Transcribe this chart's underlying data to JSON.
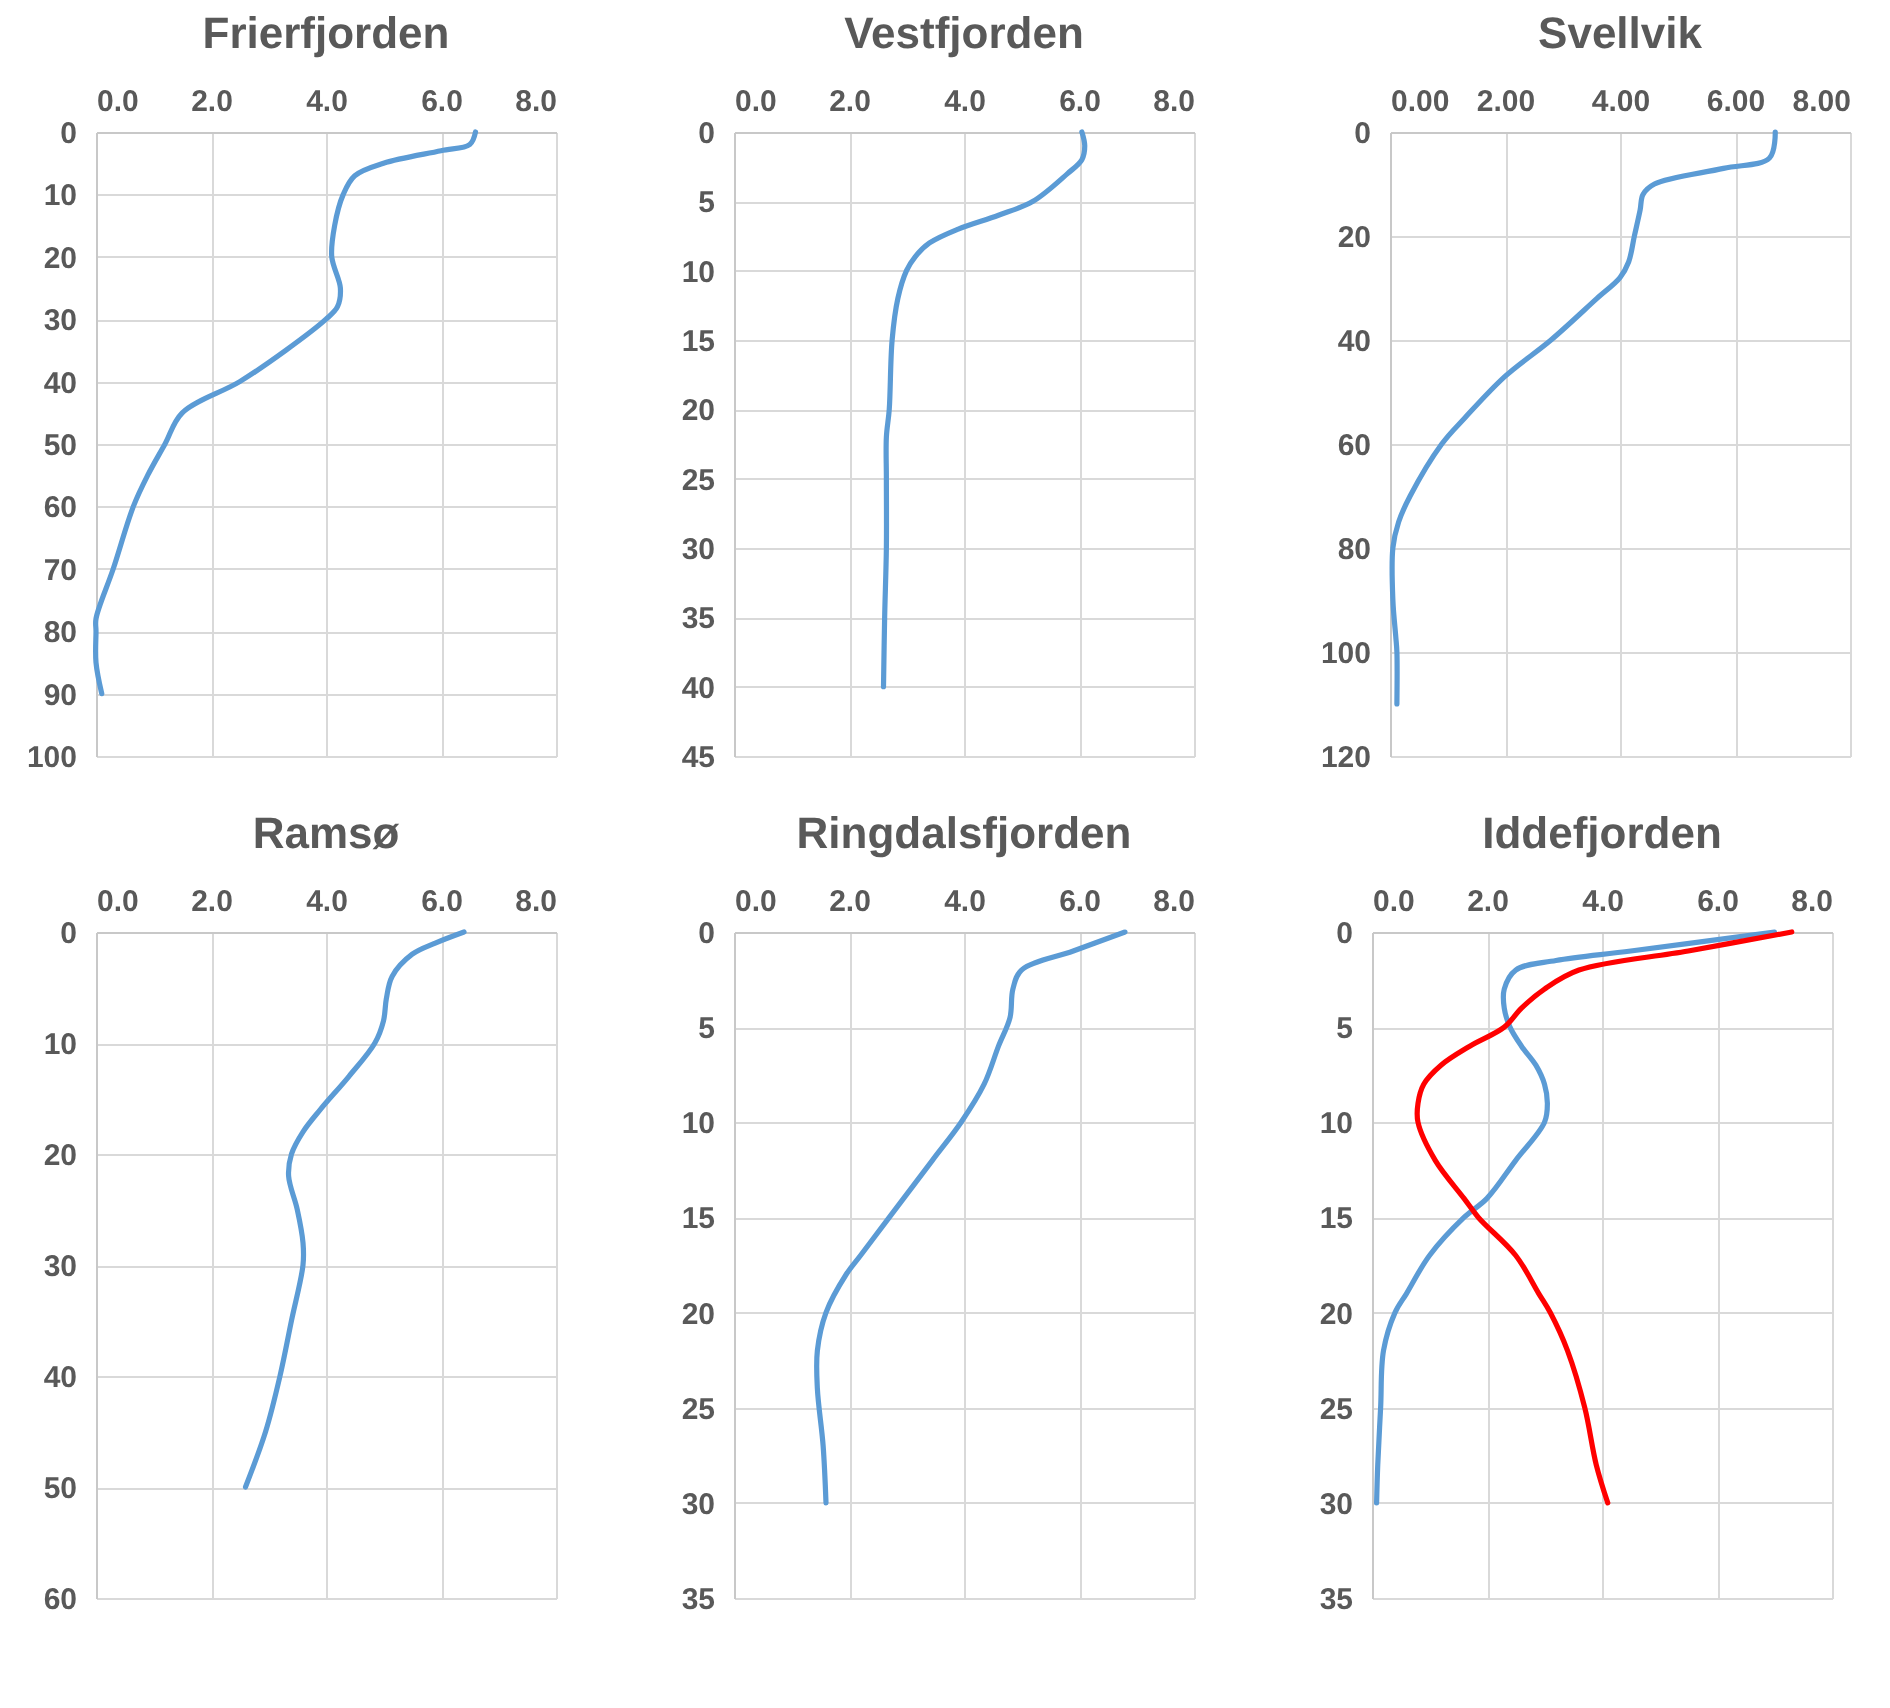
{
  "chart_data": [
    {
      "type": "line",
      "title": "Frierfjorden",
      "xlim": [
        0,
        8
      ],
      "xticks": [
        {
          "value": 0,
          "label": "0.0"
        },
        {
          "value": 2,
          "label": "2.0"
        },
        {
          "value": 4,
          "label": "4.0"
        },
        {
          "value": 6,
          "label": "6.0"
        },
        {
          "value": 8,
          "label": "8.0"
        }
      ],
      "ylim": [
        100,
        0
      ],
      "yticks": [
        0,
        10,
        20,
        30,
        40,
        50,
        60,
        70,
        80,
        90,
        100
      ],
      "grid": true,
      "series": [
        {
          "color": "#5b9bd5",
          "x": [
            6.6,
            6.5,
            6.0,
            5.0,
            4.5,
            4.3,
            4.15,
            4.1,
            4.25,
            4.2,
            4.0,
            3.3,
            2.5,
            1.5,
            1.2,
            0.9,
            0.65,
            0.3,
            0.0,
            0.0,
            0.0,
            0.1
          ],
          "values": [
            0,
            2,
            3,
            5,
            7,
            10,
            15,
            20,
            25,
            28,
            30,
            35,
            40,
            45,
            50,
            55,
            60,
            70,
            78,
            80,
            85,
            90
          ]
        }
      ]
    },
    {
      "type": "line",
      "title": "Vestfjorden",
      "xlim": [
        0,
        8
      ],
      "xticks": [
        {
          "value": 0,
          "label": "0.0"
        },
        {
          "value": 2,
          "label": "2.0"
        },
        {
          "value": 4,
          "label": "4.0"
        },
        {
          "value": 6,
          "label": "6.0"
        },
        {
          "value": 8,
          "label": "8.0"
        }
      ],
      "ylim": [
        45,
        0
      ],
      "yticks": [
        0,
        5,
        10,
        15,
        20,
        25,
        30,
        35,
        40,
        45
      ],
      "grid": true,
      "series": [
        {
          "color": "#5b9bd5",
          "x": [
            6.05,
            6.1,
            6.05,
            5.8,
            5.2,
            4.6,
            3.9,
            3.4,
            3.15,
            3.0,
            2.85,
            2.75,
            2.7,
            2.65,
            2.65,
            2.65,
            2.62,
            2.6
          ],
          "values": [
            0,
            1,
            2,
            3,
            5,
            6,
            7,
            8,
            9,
            10,
            12,
            15,
            20,
            22,
            25,
            30,
            35,
            40
          ]
        }
      ]
    },
    {
      "type": "line",
      "title": "Svellvik",
      "xlim": [
        0,
        8
      ],
      "xticks": [
        {
          "value": 0,
          "label": "0.00"
        },
        {
          "value": 2,
          "label": "2.00"
        },
        {
          "value": 4,
          "label": "4.00"
        },
        {
          "value": 6,
          "label": "6.00"
        },
        {
          "value": 8,
          "label": "8.00"
        }
      ],
      "ylim": [
        120,
        0
      ],
      "yticks": [
        0,
        20,
        40,
        60,
        80,
        100,
        120
      ],
      "grid": true,
      "series": [
        {
          "color": "#5b9bd5",
          "x": [
            6.7,
            6.6,
            5.8,
            4.6,
            4.4,
            4.35,
            4.25,
            4.15,
            4.0,
            3.6,
            2.8,
            2.0,
            1.3,
            0.9,
            0.35,
            0.15,
            0.05,
            0.05,
            0.1,
            0.12,
            0.12
          ],
          "values": [
            0,
            5,
            7,
            10,
            12,
            15,
            20,
            25,
            28,
            32,
            40,
            47,
            55,
            60,
            70,
            75,
            80,
            90,
            97,
            100,
            110
          ]
        }
      ]
    },
    {
      "type": "line",
      "title": "Ramsø",
      "xlim": [
        0,
        8
      ],
      "xticks": [
        {
          "value": 0,
          "label": "0.0"
        },
        {
          "value": 2,
          "label": "2.0"
        },
        {
          "value": 4,
          "label": "4.0"
        },
        {
          "value": 6,
          "label": "6.0"
        },
        {
          "value": 8,
          "label": "8.0"
        }
      ],
      "ylim": [
        60,
        0
      ],
      "yticks": [
        0,
        10,
        20,
        30,
        40,
        50,
        60
      ],
      "grid": true,
      "series": [
        {
          "color": "#5b9bd5",
          "x": [
            6.4,
            5.9,
            5.5,
            5.15,
            5.05,
            5.0,
            4.85,
            4.4,
            3.9,
            3.6,
            3.4,
            3.35,
            3.5,
            3.6,
            3.6,
            3.4,
            3.2,
            2.95,
            2.6
          ],
          "values": [
            0,
            1,
            2,
            4,
            6,
            8,
            10,
            13,
            16,
            18,
            20,
            22,
            25,
            28,
            30,
            35,
            40,
            45,
            50
          ]
        }
      ]
    },
    {
      "type": "line",
      "title": "Ringdalsfjorden",
      "xlim": [
        0,
        8
      ],
      "xticks": [
        {
          "value": 0,
          "label": "0.0"
        },
        {
          "value": 2,
          "label": "2.0"
        },
        {
          "value": 4,
          "label": "4.0"
        },
        {
          "value": 6,
          "label": "6.0"
        },
        {
          "value": 8,
          "label": "8.0"
        }
      ],
      "ylim": [
        35,
        0
      ],
      "yticks": [
        0,
        5,
        10,
        15,
        20,
        25,
        30,
        35
      ],
      "grid": true,
      "series": [
        {
          "color": "#5b9bd5",
          "x": [
            6.8,
            5.9,
            5.0,
            4.85,
            4.8,
            4.6,
            4.35,
            3.95,
            3.45,
            2.7,
            2.2,
            1.95,
            1.6,
            1.45,
            1.45,
            1.55,
            1.6
          ],
          "values": [
            0,
            1,
            2,
            3,
            4.5,
            6,
            8,
            10,
            12,
            15,
            17,
            18,
            20,
            22,
            24,
            27,
            30
          ]
        }
      ]
    },
    {
      "type": "line",
      "title": "Iddefjorden",
      "xlim": [
        0,
        8
      ],
      "xticks": [
        {
          "value": 0,
          "label": "0.0"
        },
        {
          "value": 2,
          "label": "2.0"
        },
        {
          "value": 4,
          "label": "4.0"
        },
        {
          "value": 6,
          "label": "6.0"
        },
        {
          "value": 8,
          "label": "8.0"
        }
      ],
      "ylim": [
        35,
        0
      ],
      "yticks": [
        0,
        5,
        10,
        15,
        20,
        25,
        30,
        35
      ],
      "grid": true,
      "series": [
        {
          "color": "#5b9bd5",
          "x": [
            7.0,
            4.5,
            3.2,
            2.5,
            2.3,
            2.3,
            2.4,
            2.6,
            2.85,
            3.0,
            3.05,
            3.0,
            2.5,
            2.0,
            1.6,
            1.0,
            0.6,
            0.4,
            0.2,
            0.15,
            0.1,
            0.08
          ],
          "values": [
            0,
            1,
            1.5,
            2,
            3,
            4,
            5,
            6,
            7,
            8,
            9,
            10,
            12,
            14,
            15,
            17,
            19,
            20,
            22,
            25,
            28,
            30
          ]
        },
        {
          "color": "#ff0000",
          "x": [
            7.3,
            5.5,
            3.6,
            3.0,
            2.6,
            2.3,
            1.7,
            1.2,
            0.9,
            0.8,
            0.8,
            1.1,
            1.6,
            1.85,
            2.5,
            2.9,
            3.1,
            3.4,
            3.7,
            3.9,
            4.1
          ],
          "values": [
            0,
            1,
            2,
            3,
            4,
            5,
            6,
            7,
            8,
            9,
            10,
            12,
            14,
            15,
            17,
            19,
            20,
            22,
            25,
            28,
            30
          ]
        }
      ]
    }
  ]
}
